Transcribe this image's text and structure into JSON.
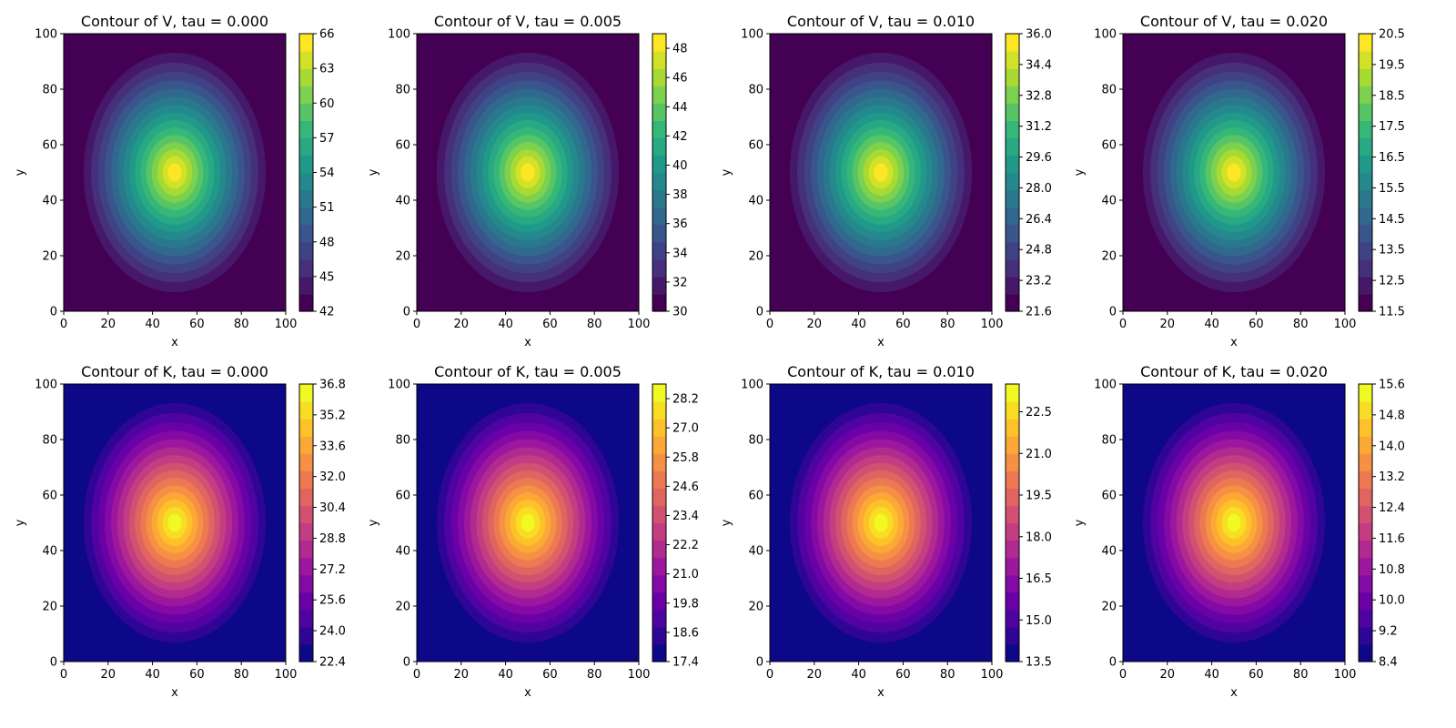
{
  "chart_data": [
    {
      "type": "contour",
      "variable": "V",
      "colormap": "viridis",
      "title": "Contour of V, tau = 0.000",
      "xlabel": "x",
      "ylabel": "y",
      "xlim": [
        0,
        100
      ],
      "ylim": [
        0,
        100
      ],
      "xticks": [
        "0",
        "20",
        "40",
        "60",
        "80",
        "100"
      ],
      "yticks": [
        "0",
        "20",
        "40",
        "60",
        "80",
        "100"
      ],
      "center": [
        50,
        50
      ],
      "field_min": 42,
      "field_max": 66,
      "colorbar": {
        "min": 42,
        "max": 66,
        "ticks": [
          "42",
          "45",
          "48",
          "51",
          "54",
          "57",
          "60",
          "63",
          "66"
        ]
      }
    },
    {
      "type": "contour",
      "variable": "V",
      "colormap": "viridis",
      "title": "Contour of V, tau = 0.005",
      "xlabel": "x",
      "ylabel": "y",
      "xlim": [
        0,
        100
      ],
      "ylim": [
        0,
        100
      ],
      "xticks": [
        "0",
        "20",
        "40",
        "60",
        "80",
        "100"
      ],
      "yticks": [
        "0",
        "20",
        "40",
        "60",
        "80",
        "100"
      ],
      "center": [
        50,
        50
      ],
      "field_min": 30,
      "field_max": 49,
      "colorbar": {
        "min": 30,
        "max": 49,
        "ticks": [
          "30",
          "32",
          "34",
          "36",
          "38",
          "40",
          "42",
          "44",
          "46",
          "48"
        ]
      }
    },
    {
      "type": "contour",
      "variable": "V",
      "colormap": "viridis",
      "title": "Contour of V, tau = 0.010",
      "xlabel": "x",
      "ylabel": "y",
      "xlim": [
        0,
        100
      ],
      "ylim": [
        0,
        100
      ],
      "xticks": [
        "0",
        "20",
        "40",
        "60",
        "80",
        "100"
      ],
      "yticks": [
        "0",
        "20",
        "40",
        "60",
        "80",
        "100"
      ],
      "center": [
        50,
        50
      ],
      "field_min": 21.6,
      "field_max": 36.0,
      "colorbar": {
        "min": 21.6,
        "max": 36.0,
        "ticks": [
          "21.6",
          "23.2",
          "24.8",
          "26.4",
          "28.0",
          "29.6",
          "31.2",
          "32.8",
          "34.4",
          "36.0"
        ]
      }
    },
    {
      "type": "contour",
      "variable": "V",
      "colormap": "viridis",
      "title": "Contour of V, tau = 0.020",
      "xlabel": "x",
      "ylabel": "y",
      "xlim": [
        0,
        100
      ],
      "ylim": [
        0,
        100
      ],
      "xticks": [
        "0",
        "20",
        "40",
        "60",
        "80",
        "100"
      ],
      "yticks": [
        "0",
        "20",
        "40",
        "60",
        "80",
        "100"
      ],
      "center": [
        50,
        50
      ],
      "field_min": 11.5,
      "field_max": 20.5,
      "colorbar": {
        "min": 11.5,
        "max": 20.5,
        "ticks": [
          "11.5",
          "12.5",
          "13.5",
          "14.5",
          "15.5",
          "16.5",
          "17.5",
          "18.5",
          "19.5",
          "20.5"
        ]
      }
    },
    {
      "type": "contour",
      "variable": "K",
      "colormap": "plasma",
      "title": "Contour of K, tau = 0.000",
      "xlabel": "x",
      "ylabel": "y",
      "xlim": [
        0,
        100
      ],
      "ylim": [
        0,
        100
      ],
      "xticks": [
        "0",
        "20",
        "40",
        "60",
        "80",
        "100"
      ],
      "yticks": [
        "0",
        "20",
        "40",
        "60",
        "80",
        "100"
      ],
      "center": [
        50,
        50
      ],
      "field_min": 22.4,
      "field_max": 36.8,
      "colorbar": {
        "min": 22.4,
        "max": 36.8,
        "ticks": [
          "22.4",
          "24.0",
          "25.6",
          "27.2",
          "28.8",
          "30.4",
          "32.0",
          "33.6",
          "35.2",
          "36.8"
        ]
      }
    },
    {
      "type": "contour",
      "variable": "K",
      "colormap": "plasma",
      "title": "Contour of K, tau = 0.005",
      "xlabel": "x",
      "ylabel": "y",
      "xlim": [
        0,
        100
      ],
      "ylim": [
        0,
        100
      ],
      "xticks": [
        "0",
        "20",
        "40",
        "60",
        "80",
        "100"
      ],
      "yticks": [
        "0",
        "20",
        "40",
        "60",
        "80",
        "100"
      ],
      "center": [
        50,
        50
      ],
      "field_min": 17.4,
      "field_max": 28.8,
      "colorbar": {
        "min": 17.4,
        "max": 28.8,
        "ticks": [
          "17.4",
          "18.6",
          "19.8",
          "21.0",
          "22.2",
          "23.4",
          "24.6",
          "25.8",
          "27.0",
          "28.2"
        ]
      }
    },
    {
      "type": "contour",
      "variable": "K",
      "colormap": "plasma",
      "title": "Contour of K, tau = 0.010",
      "xlabel": "x",
      "ylabel": "y",
      "xlim": [
        0,
        100
      ],
      "ylim": [
        0,
        100
      ],
      "xticks": [
        "0",
        "20",
        "40",
        "60",
        "80",
        "100"
      ],
      "yticks": [
        "0",
        "20",
        "40",
        "60",
        "80",
        "100"
      ],
      "center": [
        50,
        50
      ],
      "field_min": 13.5,
      "field_max": 23.5,
      "colorbar": {
        "min": 13.5,
        "max": 23.5,
        "ticks": [
          "13.5",
          "15.0",
          "16.5",
          "18.0",
          "19.5",
          "21.0",
          "22.5"
        ]
      }
    },
    {
      "type": "contour",
      "variable": "K",
      "colormap": "plasma",
      "title": "Contour of K, tau = 0.020",
      "xlabel": "x",
      "ylabel": "y",
      "xlim": [
        0,
        100
      ],
      "ylim": [
        0,
        100
      ],
      "xticks": [
        "0",
        "20",
        "40",
        "60",
        "80",
        "100"
      ],
      "yticks": [
        "0",
        "20",
        "40",
        "60",
        "80",
        "100"
      ],
      "center": [
        50,
        50
      ],
      "field_min": 8.4,
      "field_max": 15.6,
      "colorbar": {
        "min": 8.4,
        "max": 15.6,
        "ticks": [
          "8.4",
          "9.2",
          "10.0",
          "10.8",
          "11.6",
          "12.4",
          "13.2",
          "14.0",
          "14.8",
          "15.6"
        ]
      }
    }
  ]
}
